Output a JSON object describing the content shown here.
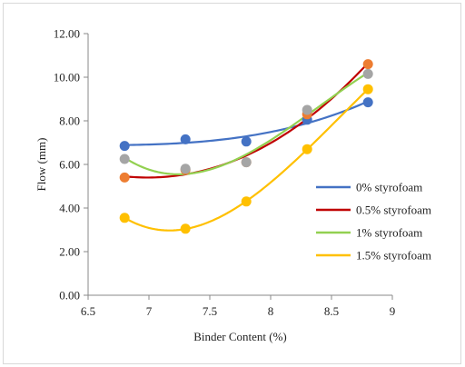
{
  "chart_data": {
    "type": "scatter",
    "title": "",
    "xlabel": "Binder Content (%)",
    "ylabel": "Flow (mm)",
    "xlim": [
      6.5,
      9
    ],
    "ylim": [
      0,
      12
    ],
    "x_ticks": [
      "6.5",
      "7",
      "7.5",
      "8",
      "8.5",
      "9"
    ],
    "y_ticks": [
      "0.00",
      "2.00",
      "4.00",
      "6.00",
      "8.00",
      "10.00",
      "12.00"
    ],
    "grid": false,
    "legend_position": "right",
    "trendline": "polynomial",
    "series": [
      {
        "name": "0% styrofoam",
        "color": "#4472c4",
        "x": [
          6.8,
          7.3,
          7.8,
          8.3,
          8.8
        ],
        "y": [
          6.85,
          7.15,
          7.05,
          8.05,
          8.85
        ]
      },
      {
        "name": "0.5% styrofoam",
        "color": "#c00000",
        "x": [
          6.8,
          7.3,
          7.8,
          8.3,
          8.8
        ],
        "y": [
          5.4,
          5.75,
          6.1,
          8.3,
          10.6
        ]
      },
      {
        "name": "1% styrofoam",
        "color": "#92d050",
        "x": [
          6.8,
          7.3,
          7.8,
          8.3,
          8.8
        ],
        "y": [
          6.25,
          5.8,
          6.1,
          8.5,
          10.15
        ]
      },
      {
        "name": "1.5% styrofoam",
        "color": "#ffc000",
        "x": [
          6.8,
          7.3,
          7.8,
          8.3,
          8.8
        ],
        "y": [
          3.55,
          3.05,
          4.3,
          6.7,
          9.45
        ]
      }
    ],
    "marker_colors": {
      "0% styrofoam": "#4472c4",
      "0.5% styrofoam": "#ed7d31",
      "1% styrofoam": "#a5a5a5",
      "1.5% styrofoam": "#ffc000"
    }
  }
}
